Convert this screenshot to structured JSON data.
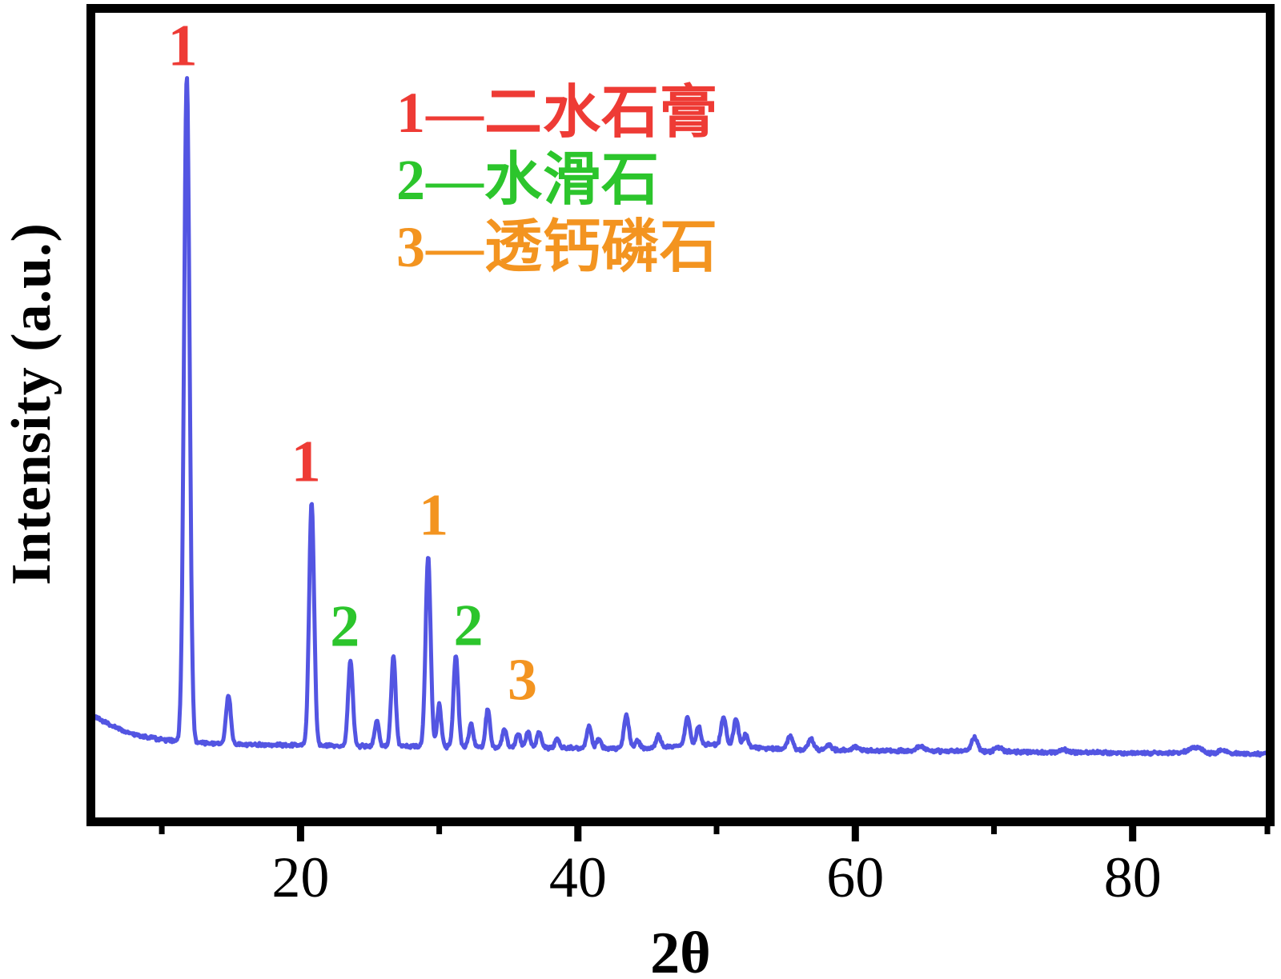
{
  "figure": {
    "background": "#ffffff",
    "frame_color": "#000000"
  },
  "chart_data": {
    "type": "line",
    "description": "Powder XRD diffraction pattern with numbered phase labels",
    "xlabel": "2θ",
    "ylabel": "Intensity (a.u.)",
    "xlim": [
      5.2,
      89.6
    ],
    "x_major_ticks": [
      20,
      40,
      60,
      80
    ],
    "x_major_tick_labels": [
      "20",
      "40",
      "60",
      "80"
    ],
    "x_minor_ticks": [
      10,
      30,
      50,
      70,
      90
    ],
    "y_ticks": [],
    "grid": false,
    "legend_position": "upper-center-left",
    "line_color": "#5355e2",
    "series_name": "XRD intensity trace",
    "baseline": {
      "start_intensity": 4.2,
      "decay": 2.8,
      "slope": -0.018,
      "noise_amplitude": 0.32
    },
    "peaks": [
      {
        "two_theta": 11.8,
        "intensity": 100.0,
        "width": 0.2
      },
      {
        "two_theta": 14.8,
        "intensity": 7.3,
        "width": 0.17
      },
      {
        "two_theta": 20.8,
        "intensity": 36.5,
        "width": 0.18
      },
      {
        "two_theta": 23.6,
        "intensity": 12.8,
        "width": 0.17
      },
      {
        "two_theta": 25.5,
        "intensity": 3.8,
        "width": 0.15
      },
      {
        "two_theta": 26.7,
        "intensity": 13.5,
        "width": 0.16
      },
      {
        "two_theta": 29.2,
        "intensity": 28.5,
        "width": 0.18
      },
      {
        "two_theta": 30.0,
        "intensity": 6.3,
        "width": 0.15
      },
      {
        "two_theta": 31.2,
        "intensity": 13.8,
        "width": 0.17
      },
      {
        "two_theta": 32.3,
        "intensity": 3.6,
        "width": 0.15
      },
      {
        "two_theta": 33.5,
        "intensity": 5.6,
        "width": 0.16
      },
      {
        "two_theta": 34.7,
        "intensity": 2.8,
        "width": 0.15
      },
      {
        "two_theta": 35.7,
        "intensity": 2.1,
        "width": 0.16
      },
      {
        "two_theta": 36.4,
        "intensity": 2.3,
        "width": 0.16
      },
      {
        "two_theta": 37.2,
        "intensity": 2.4,
        "width": 0.16
      },
      {
        "two_theta": 38.5,
        "intensity": 1.4,
        "width": 0.15
      },
      {
        "two_theta": 40.8,
        "intensity": 3.3,
        "width": 0.17
      },
      {
        "two_theta": 41.5,
        "intensity": 1.4,
        "width": 0.15
      },
      {
        "two_theta": 43.5,
        "intensity": 4.9,
        "width": 0.18
      },
      {
        "two_theta": 44.3,
        "intensity": 1.2,
        "width": 0.15
      },
      {
        "two_theta": 45.8,
        "intensity": 1.9,
        "width": 0.16
      },
      {
        "two_theta": 47.9,
        "intensity": 4.3,
        "width": 0.17
      },
      {
        "two_theta": 48.7,
        "intensity": 2.8,
        "width": 0.16
      },
      {
        "two_theta": 49.8,
        "intensity": 0.7,
        "width": 2.5
      },
      {
        "two_theta": 50.5,
        "intensity": 4.3,
        "width": 0.17
      },
      {
        "two_theta": 51.4,
        "intensity": 4.0,
        "width": 0.17
      },
      {
        "two_theta": 52.1,
        "intensity": 1.8,
        "width": 0.16
      },
      {
        "two_theta": 55.3,
        "intensity": 1.9,
        "width": 0.2
      },
      {
        "two_theta": 56.8,
        "intensity": 1.6,
        "width": 0.2
      },
      {
        "two_theta": 58.1,
        "intensity": 0.8,
        "width": 0.2
      },
      {
        "two_theta": 60.0,
        "intensity": 0.5,
        "width": 0.25
      },
      {
        "two_theta": 64.7,
        "intensity": 0.8,
        "width": 0.25
      },
      {
        "two_theta": 68.6,
        "intensity": 2.1,
        "width": 0.22
      },
      {
        "two_theta": 70.3,
        "intensity": 0.6,
        "width": 0.25
      },
      {
        "two_theta": 75.0,
        "intensity": 0.4,
        "width": 0.3
      },
      {
        "two_theta": 84.5,
        "intensity": 0.9,
        "width": 0.45
      },
      {
        "two_theta": 86.5,
        "intensity": 0.5,
        "width": 0.3
      }
    ],
    "legend": [
      {
        "text": "1—二水石膏",
        "color": "#ee3b35"
      },
      {
        "text": "2—水滑石",
        "color": "#2cc52c"
      },
      {
        "text": "3—透钙磷石",
        "color": "#f39420"
      }
    ],
    "annotations": [
      {
        "text": "1",
        "color": "#ee3b35",
        "two_theta": 11.5,
        "intensity": 104.8
      },
      {
        "text": "1",
        "color": "#ee3b35",
        "two_theta": 20.4,
        "intensity": 42.3
      },
      {
        "text": "1",
        "color": "#f39420",
        "two_theta": 29.6,
        "intensity": 34.3
      },
      {
        "text": "2",
        "color": "#2cc52c",
        "two_theta": 23.2,
        "intensity": 17.6
      },
      {
        "text": "2",
        "color": "#2cc52c",
        "two_theta": 32.1,
        "intensity": 17.7
      },
      {
        "text": "3",
        "color": "#f39420",
        "two_theta": 36.0,
        "intensity": 9.5
      }
    ]
  }
}
